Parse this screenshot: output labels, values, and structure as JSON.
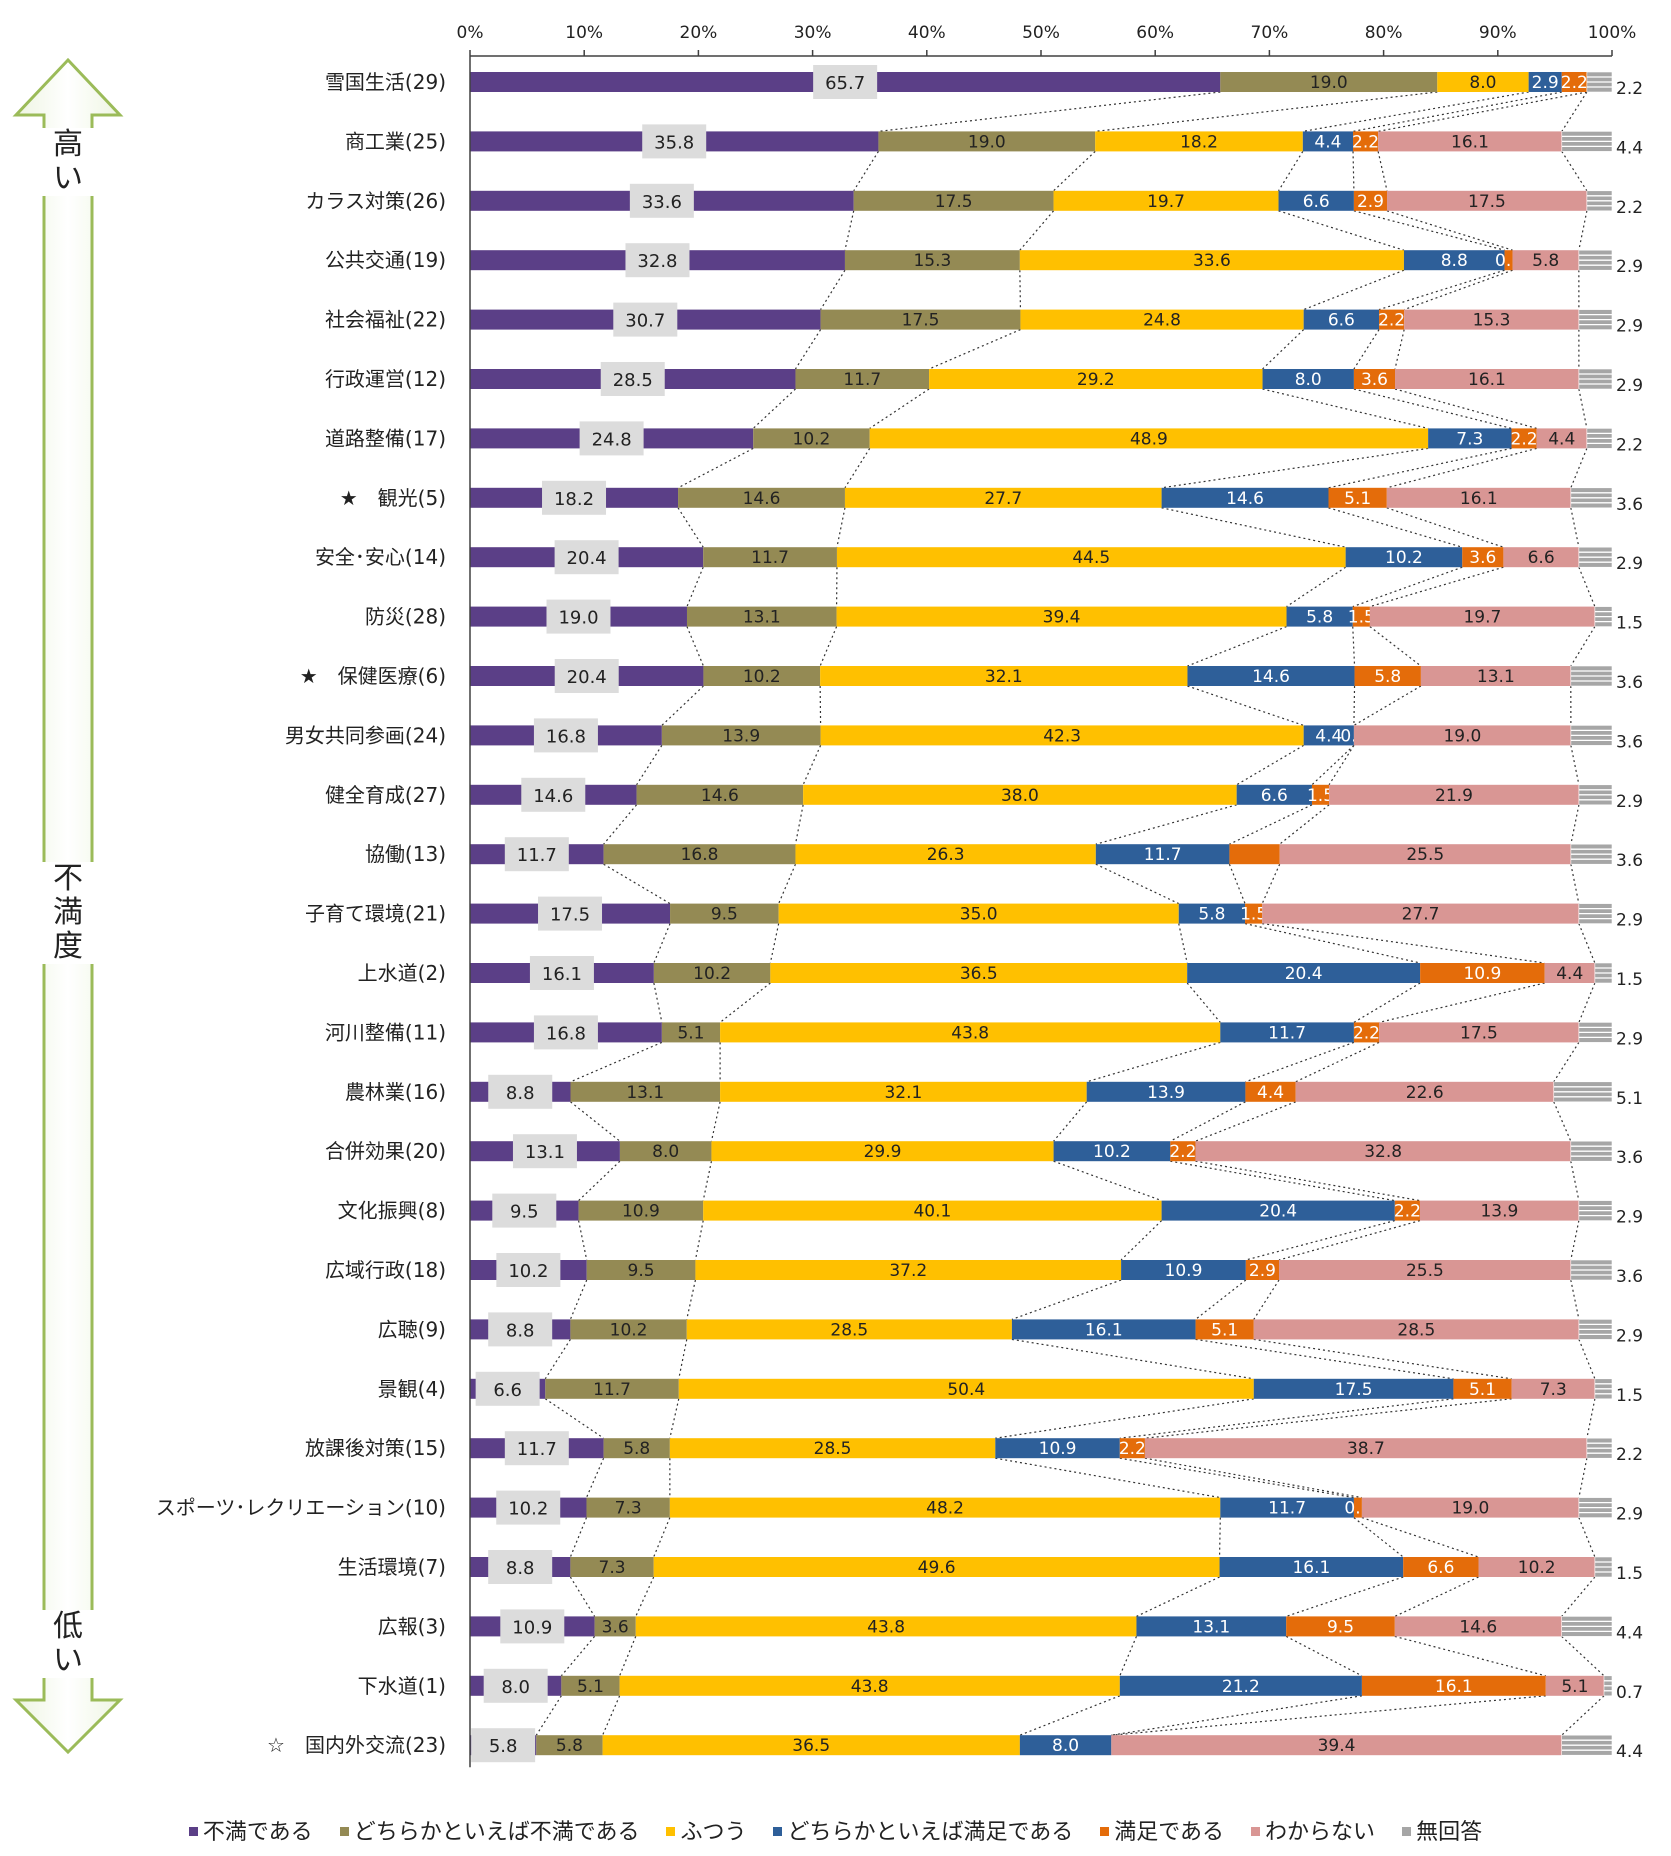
{
  "y_axis": {
    "top_label": "高い",
    "middle_label": "不満度",
    "bottom_label": "低い"
  },
  "chart_data": {
    "type": "bar",
    "stacked": true,
    "orientation": "horizontal",
    "title": "",
    "xlabel": "",
    "ylabel": "不満度",
    "xlim": [
      0,
      100
    ],
    "x_ticks": [
      "0%",
      "10%",
      "20%",
      "30%",
      "40%",
      "50%",
      "60%",
      "70%",
      "80%",
      "90%",
      "100%"
    ],
    "grid": false,
    "legend_position": "bottom",
    "categories": [
      "雪国生活(29)",
      "商工業(25)",
      "カラス対策(26)",
      "公共交通(19)",
      "社会福祉(22)",
      "行政運営(12)",
      "道路整備(17)",
      "★　観光(5)",
      "安全･安心(14)",
      "防災(28)",
      "★　保健医療(6)",
      "男女共同参画(24)",
      "健全育成(27)",
      "協働(13)",
      "子育て環境(21)",
      "上水道(2)",
      "河川整備(11)",
      "農林業(16)",
      "合併効果(20)",
      "文化振興(8)",
      "広域行政(18)",
      "広聴(9)",
      "景観(4)",
      "放課後対策(15)",
      "スポーツ･レクリエーション(10)",
      "生活環境(7)",
      "広報(3)",
      "下水道(1)",
      "☆　国内外交流(23)"
    ],
    "series": [
      {
        "name": "不満である",
        "color": "#5b3f87",
        "values": [
          65.7,
          35.8,
          33.6,
          32.8,
          30.7,
          28.5,
          24.8,
          18.2,
          20.4,
          19.0,
          20.4,
          16.8,
          14.6,
          11.7,
          17.5,
          16.1,
          16.8,
          8.8,
          13.1,
          9.5,
          10.2,
          8.8,
          6.6,
          11.7,
          10.2,
          8.8,
          10.9,
          8.0,
          5.8
        ],
        "labels": [
          "65.7",
          "35.8",
          "33.6",
          "32.8",
          "30.7",
          "28.5",
          "24.8",
          "18.2",
          "20.4",
          "19.0",
          "20.4",
          "16.8",
          "14.6",
          "11.7",
          "17.5",
          "16.1",
          "16.8",
          "8.8",
          "13.1",
          "9.5",
          "10.2",
          "8.8",
          "6.6",
          "11.7",
          "10.2",
          "8.8",
          "10.9",
          "8.0",
          "5.8"
        ]
      },
      {
        "name": "どちらかといえば不満である",
        "color": "#948a54",
        "values": [
          19.0,
          19.0,
          17.5,
          15.3,
          17.5,
          11.7,
          10.2,
          14.6,
          11.7,
          13.1,
          10.2,
          13.9,
          14.6,
          16.8,
          9.5,
          10.2,
          5.1,
          13.1,
          8.0,
          10.9,
          9.5,
          10.2,
          11.7,
          5.8,
          7.3,
          7.3,
          3.6,
          5.1,
          5.8
        ],
        "labels": [
          "19.0",
          "19.0",
          "17.5",
          "15.3",
          "17.5",
          "11.7",
          "10.2",
          "14.6",
          "11.7",
          "13.1",
          "10.2",
          "13.9",
          "14.6",
          "16.8",
          "9.5",
          "10.2",
          "5.1",
          "13.1",
          "8.0",
          "10.9",
          "9.5",
          "10.2",
          "11.7",
          "5.8",
          "7.3",
          "7.3",
          "3.6",
          "5.1",
          "5.8"
        ]
      },
      {
        "name": "ふつう",
        "color": "#ffc000",
        "values": [
          8.0,
          18.2,
          19.7,
          33.6,
          24.8,
          29.2,
          48.9,
          27.7,
          44.5,
          39.4,
          32.1,
          42.3,
          38.0,
          26.3,
          35.0,
          36.5,
          43.8,
          32.1,
          29.9,
          40.1,
          37.2,
          28.5,
          50.4,
          28.5,
          48.2,
          49.6,
          43.8,
          43.8,
          36.5
        ],
        "labels": [
          "8.0",
          "18.2",
          "19.7",
          "33.6",
          "24.8",
          "29.2",
          "48.9",
          "27.7",
          "44.5",
          "39.4",
          "32.1",
          "42.3",
          "38.0",
          "26.3",
          "35.0",
          "36.5",
          "43.8",
          "32.1",
          "29.9",
          "40.1",
          "37.2",
          "28.5",
          "50.4",
          "28.5",
          "48.2",
          "49.6",
          "43.8",
          "43.8",
          "36.5"
        ]
      },
      {
        "name": "どちらかといえば満足である",
        "color": "#2e5f99",
        "values": [
          2.9,
          4.4,
          6.6,
          8.8,
          6.6,
          8.0,
          7.3,
          14.6,
          10.2,
          5.8,
          14.6,
          4.4,
          6.6,
          11.7,
          5.8,
          20.4,
          11.7,
          13.9,
          10.2,
          20.4,
          10.9,
          16.1,
          17.5,
          10.9,
          11.7,
          16.1,
          13.1,
          21.2,
          8.0
        ],
        "labels": [
          "2.9",
          "4.4",
          "6.6",
          "8.8",
          "6.6",
          "8.0",
          "7.3",
          "14.6",
          "10.2",
          "5.8",
          "14.6",
          "4.4",
          "6.6",
          "11.7",
          "5.8",
          "20.4",
          "11.7",
          "13.9",
          "10.2",
          "20.4",
          "10.9",
          "16.1",
          "17.5",
          "10.9",
          "11.7",
          "16.1",
          "13.1",
          "21.2",
          "8.0"
        ]
      },
      {
        "name": "満足である",
        "color": "#e46c0a",
        "values": [
          2.2,
          2.2,
          2.9,
          0.7,
          2.2,
          3.6,
          2.2,
          5.1,
          3.6,
          1.5,
          5.8,
          0.0,
          1.5,
          4.4,
          1.5,
          10.9,
          2.2,
          4.4,
          2.2,
          2.2,
          2.9,
          5.1,
          5.1,
          2.2,
          0.7,
          6.6,
          9.5,
          16.1,
          0.0
        ],
        "labels": [
          "2.2",
          "2.2",
          "2.9",
          "0.7",
          "2.2",
          "3.6",
          "2.2",
          "5.1",
          "3.6",
          "1.5",
          "5.8",
          "0.0",
          "1.5",
          "",
          "1.5",
          "10.9",
          "2.2",
          "4.4",
          "2.2",
          "2.2",
          "2.9",
          "5.1",
          "5.1",
          "2.2",
          "0.7",
          "6.6",
          "9.5",
          "16.1",
          ""
        ]
      },
      {
        "name": "わからない",
        "color": "#d99694",
        "values": [
          0.0,
          16.1,
          17.5,
          5.8,
          15.3,
          16.1,
          4.4,
          16.1,
          6.6,
          19.7,
          13.1,
          19.0,
          21.9,
          25.5,
          27.7,
          4.4,
          17.5,
          22.6,
          32.8,
          13.9,
          25.5,
          28.5,
          7.3,
          38.7,
          19.0,
          10.2,
          14.6,
          5.1,
          39.4
        ],
        "labels": [
          "",
          "16.1",
          "17.5",
          "5.8",
          "15.3",
          "16.1",
          "4.4",
          "16.1",
          "6.6",
          "19.7",
          "13.1",
          "19.0",
          "21.9",
          "25.5",
          "27.7",
          "4.4",
          "17.5",
          "22.6",
          "32.8",
          "13.9",
          "25.5",
          "28.5",
          "7.3",
          "38.7",
          "19.0",
          "10.2",
          "14.6",
          "5.1",
          "39.4"
        ]
      },
      {
        "name": "無回答",
        "color": "#a6a6a6",
        "values": [
          2.2,
          4.4,
          2.2,
          2.9,
          2.9,
          2.9,
          2.2,
          3.6,
          2.9,
          1.5,
          3.6,
          3.6,
          2.9,
          3.6,
          2.9,
          1.5,
          2.9,
          5.1,
          3.6,
          2.9,
          3.6,
          2.9,
          1.5,
          2.2,
          2.9,
          1.5,
          4.4,
          0.7,
          4.4
        ],
        "labels": [
          "2.2",
          "4.4",
          "2.2",
          "2.9",
          "2.9",
          "2.9",
          "2.2",
          "3.6",
          "2.9",
          "1.5",
          "3.6",
          "3.6",
          "2.9",
          "3.6",
          "2.9",
          "1.5",
          "2.9",
          "5.1",
          "3.6",
          "2.9",
          "3.6",
          "2.9",
          "1.5",
          "2.2",
          "2.9",
          "1.5",
          "4.4",
          "0.7",
          "4.4"
        ]
      }
    ]
  }
}
